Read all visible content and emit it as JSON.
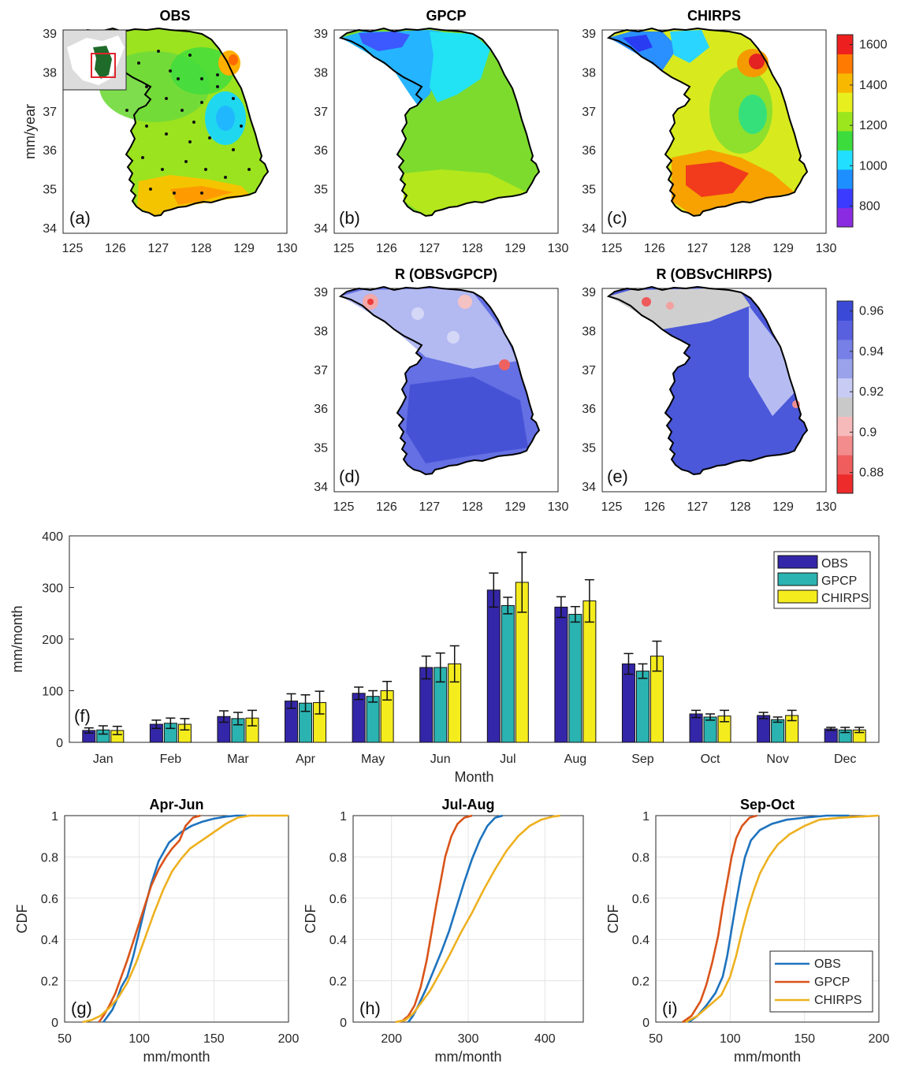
{
  "maps": {
    "obs": {
      "title": "OBS",
      "letter": "(a)",
      "ylabel": "mm/year"
    },
    "gpcp": {
      "title": "GPCP",
      "letter": "(b)"
    },
    "chirps": {
      "title": "CHIRPS",
      "letter": "(c)"
    },
    "r_gpcp": {
      "title": "R (OBSvGPCP)",
      "letter": "(d)"
    },
    "r_chirps": {
      "title": "R (OBSvCHIRPS)",
      "letter": "(e)"
    },
    "lon_ticks": [
      "125",
      "126",
      "127",
      "128",
      "129",
      "130"
    ],
    "lat_ticks": [
      "34",
      "35",
      "36",
      "37",
      "38",
      "39"
    ]
  },
  "colorbars": {
    "precip": {
      "ticks": [
        "800",
        "1000",
        "1200",
        "1400",
        "1600"
      ],
      "colors": [
        "#8a2be2",
        "#3b3bff",
        "#1e8fff",
        "#21e0ff",
        "#3ddc3d",
        "#9ce61e",
        "#e7f01e",
        "#f9b800",
        "#ff7a00",
        "#ee1f1f"
      ]
    },
    "corr": {
      "ticks": [
        "0.88",
        "0.9",
        "0.92",
        "0.94",
        "0.96"
      ],
      "colors": [
        "#ee2b2b",
        "#f05d5d",
        "#f38c8c",
        "#f7baba",
        "#c9c9c9",
        "#c8cbf3",
        "#9aa2ec",
        "#7680e6",
        "#5860df",
        "#3a49d6"
      ]
    }
  },
  "chart_data": [
    {
      "type": "bar",
      "panel": "(f)",
      "title": "",
      "xlabel": "Month",
      "ylabel": "mm/month",
      "ylim": [
        0,
        400
      ],
      "yticks": [
        "0",
        "100",
        "200",
        "300",
        "400"
      ],
      "categories": [
        "Jan",
        "Feb",
        "Mar",
        "Apr",
        "May",
        "Jun",
        "Jul",
        "Aug",
        "Sep",
        "Oct",
        "Nov",
        "Dec"
      ],
      "legend": "top-right",
      "series": [
        {
          "name": "OBS",
          "color": "#3426a8",
          "values": [
            23,
            35,
            50,
            80,
            95,
            145,
            295,
            262,
            152,
            55,
            52,
            26
          ],
          "errors": [
            5,
            8,
            11,
            14,
            12,
            22,
            33,
            20,
            20,
            7,
            6,
            3
          ]
        },
        {
          "name": "GPCP",
          "color": "#2ab3b0",
          "values": [
            24,
            37,
            46,
            76,
            89,
            145,
            265,
            248,
            138,
            49,
            44,
            24
          ],
          "errors": [
            8,
            10,
            12,
            16,
            11,
            28,
            16,
            15,
            14,
            6,
            5,
            5
          ]
        },
        {
          "name": "CHIRPS",
          "color": "#f5ec1e",
          "values": [
            23,
            35,
            47,
            77,
            100,
            152,
            310,
            274,
            167,
            51,
            52,
            24
          ],
          "errors": [
            8,
            11,
            15,
            22,
            18,
            35,
            58,
            41,
            29,
            11,
            10,
            5
          ]
        }
      ]
    },
    {
      "type": "line",
      "panel": "(g)",
      "title": "Apr-Jun",
      "xlabel": "mm/month",
      "ylabel": "CDF",
      "xlim": [
        50,
        200
      ],
      "ylim": [
        0,
        1
      ],
      "xticks": [
        "50",
        "100",
        "150",
        "200"
      ],
      "yticks": [
        "0",
        "0.2",
        "0.4",
        "0.6",
        "0.8",
        "1"
      ],
      "series": [
        {
          "name": "OBS",
          "color": "#1e73be",
          "x": [
            76,
            78,
            82,
            85,
            88,
            92,
            96,
            100,
            104,
            108,
            113,
            120,
            128,
            135,
            142,
            150,
            158,
            165,
            172
          ],
          "y": [
            0,
            0.02,
            0.06,
            0.11,
            0.17,
            0.22,
            0.32,
            0.44,
            0.56,
            0.67,
            0.78,
            0.87,
            0.92,
            0.95,
            0.97,
            0.985,
            0.995,
            1,
            1
          ]
        },
        {
          "name": "GPCP",
          "color": "#d9541a",
          "x": [
            73,
            76,
            80,
            84,
            88,
            92,
            96,
            100,
            104,
            108,
            113,
            118,
            122,
            127,
            131,
            136,
            141
          ],
          "y": [
            0,
            0.03,
            0.08,
            0.14,
            0.22,
            0.3,
            0.39,
            0.48,
            0.57,
            0.66,
            0.74,
            0.8,
            0.84,
            0.88,
            0.95,
            0.99,
            1
          ]
        },
        {
          "name": "CHIRPS",
          "color": "#edb120",
          "x": [
            62,
            68,
            74,
            80,
            86,
            92,
            98,
            104,
            110,
            116,
            122,
            128,
            134,
            142,
            150,
            158,
            166,
            174,
            180,
            200
          ],
          "y": [
            0,
            0.01,
            0.03,
            0.07,
            0.12,
            0.19,
            0.29,
            0.41,
            0.53,
            0.64,
            0.73,
            0.79,
            0.84,
            0.88,
            0.92,
            0.96,
            0.99,
            1,
            1,
            1
          ]
        }
      ]
    },
    {
      "type": "line",
      "panel": "(h)",
      "title": "Jul-Aug",
      "xlabel": "mm/month",
      "ylabel": "CDF",
      "xlim": [
        150,
        450
      ],
      "ylim": [
        0,
        1
      ],
      "xticks": [
        "200",
        "300",
        "400"
      ],
      "yticks": [
        "0",
        "0.2",
        "0.4",
        "0.6",
        "0.8",
        "1"
      ],
      "series": [
        {
          "name": "OBS",
          "color": "#1e73be",
          "x": [
            222,
            228,
            235,
            245,
            255,
            265,
            275,
            285,
            295,
            305,
            315,
            325,
            335,
            345
          ],
          "y": [
            0,
            0.03,
            0.08,
            0.16,
            0.25,
            0.34,
            0.44,
            0.56,
            0.68,
            0.79,
            0.88,
            0.95,
            0.99,
            1
          ]
        },
        {
          "name": "GPCP",
          "color": "#d9541a",
          "x": [
            212,
            222,
            230,
            238,
            246,
            252,
            258,
            264,
            270,
            278,
            286,
            295,
            305
          ],
          "y": [
            0,
            0.03,
            0.08,
            0.17,
            0.3,
            0.43,
            0.56,
            0.68,
            0.8,
            0.9,
            0.96,
            0.99,
            1
          ]
        },
        {
          "name": "CHIRPS",
          "color": "#edb120",
          "x": [
            205,
            218,
            228,
            238,
            250,
            262,
            275,
            290,
            305,
            320,
            335,
            350,
            365,
            380,
            395,
            410,
            420
          ],
          "y": [
            0,
            0.01,
            0.04,
            0.09,
            0.15,
            0.23,
            0.32,
            0.43,
            0.53,
            0.64,
            0.74,
            0.83,
            0.9,
            0.95,
            0.98,
            0.995,
            1
          ]
        }
      ]
    },
    {
      "type": "line",
      "panel": "(i)",
      "title": "Sep-Oct",
      "xlabel": "mm/month",
      "ylabel": "CDF",
      "xlim": [
        50,
        200
      ],
      "ylim": [
        0,
        1
      ],
      "xticks": [
        "50",
        "100",
        "150",
        "200"
      ],
      "yticks": [
        "0",
        "0.2",
        "0.4",
        "0.6",
        "0.8",
        "1"
      ],
      "legend": "bottom-right",
      "series": [
        {
          "name": "OBS",
          "color": "#1e73be",
          "x": [
            72,
            78,
            84,
            90,
            95,
            98,
            101,
            104,
            107,
            110,
            114,
            120,
            128,
            138,
            150,
            165,
            180
          ],
          "y": [
            0,
            0.03,
            0.08,
            0.14,
            0.22,
            0.32,
            0.45,
            0.58,
            0.7,
            0.8,
            0.88,
            0.93,
            0.96,
            0.98,
            0.99,
            1,
            1
          ]
        },
        {
          "name": "GPCP",
          "color": "#d9541a",
          "x": [
            68,
            74,
            80,
            84,
            88,
            92,
            95,
            98,
            101,
            104,
            108,
            113,
            118
          ],
          "y": [
            0,
            0.03,
            0.1,
            0.18,
            0.29,
            0.42,
            0.56,
            0.68,
            0.8,
            0.89,
            0.95,
            0.99,
            1
          ]
        },
        {
          "name": "CHIRPS",
          "color": "#edb120",
          "x": [
            70,
            78,
            86,
            94,
            100,
            104,
            108,
            112,
            116,
            120,
            126,
            132,
            140,
            150,
            160,
            175,
            200
          ],
          "y": [
            0,
            0.03,
            0.08,
            0.13,
            0.22,
            0.32,
            0.44,
            0.55,
            0.64,
            0.72,
            0.8,
            0.86,
            0.91,
            0.95,
            0.98,
            0.99,
            1
          ]
        }
      ]
    }
  ]
}
